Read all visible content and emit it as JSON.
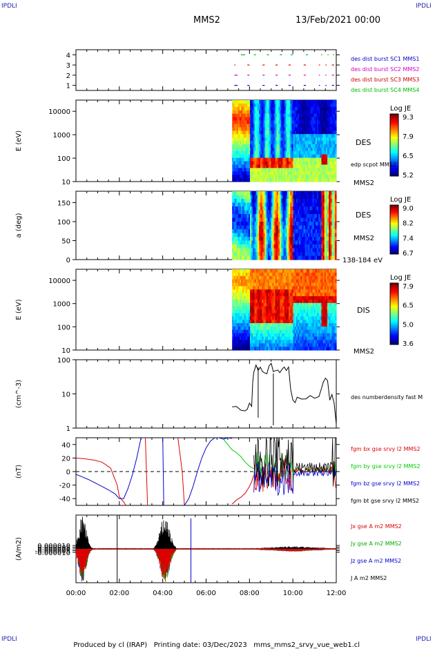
{
  "header": {
    "corner_label": "IPDLI",
    "spacecraft": "MMS2",
    "datetime": "13/Feb/2021 00:00"
  },
  "footer": {
    "produced_by": "Produced by cl (IRAP)",
    "printing_date": "Printing date: 03/Dec/2023",
    "filename": "mms_mms2_srvy_vue_web1.cl"
  },
  "time_axis": {
    "range_hours": [
      0,
      12
    ],
    "tick_labels": [
      "00:00",
      "02:00",
      "04:00",
      "06:00",
      "08:00",
      "10:00",
      "12:00"
    ]
  },
  "chart_data": [
    {
      "type": "scatter",
      "panel": "burst-availability",
      "ylim": [
        0.5,
        4.5
      ],
      "y_ticks": [
        "1",
        "2",
        "3",
        "4"
      ],
      "ylabel": "",
      "series": [
        {
          "name": "des dist burst SC1 MMS1",
          "color": "#0000cc",
          "y": 1,
          "segments_hours": [
            [
              7.3,
              7.45
            ],
            [
              7.9,
              8.0
            ],
            [
              8.6,
              8.7
            ],
            [
              9.2,
              9.3
            ],
            [
              9.8,
              9.9
            ],
            [
              10.5,
              10.6
            ],
            [
              11.2,
              11.25
            ],
            [
              11.5,
              11.55
            ],
            [
              11.8,
              11.9
            ]
          ]
        },
        {
          "name": "des dist burst SC2 MMS2",
          "color": "#cc00cc",
          "y": 2,
          "segments_hours": [
            [
              7.3,
              7.45
            ],
            [
              7.9,
              8.0
            ],
            [
              8.6,
              8.7
            ],
            [
              9.2,
              9.3
            ],
            [
              9.8,
              9.9
            ],
            [
              10.5,
              10.6
            ],
            [
              11.2,
              11.25
            ],
            [
              11.5,
              11.55
            ],
            [
              11.8,
              11.9
            ]
          ]
        },
        {
          "name": "des dist burst SC3 MMS3",
          "color": "#cc0000",
          "y": 3,
          "segments_hours": [
            [
              7.3,
              7.35
            ],
            [
              7.9,
              8.0
            ],
            [
              8.6,
              8.7
            ],
            [
              9.2,
              9.3
            ],
            [
              9.8,
              9.9
            ],
            [
              10.5,
              10.6
            ],
            [
              11.2,
              11.25
            ],
            [
              11.5,
              11.55
            ],
            [
              11.8,
              11.9
            ]
          ]
        },
        {
          "name": "des dist burst SC4 MMS4",
          "color": "#00bb00",
          "y": 4,
          "segments_hours": [
            [
              7.6,
              7.8
            ],
            [
              8.2,
              8.3
            ],
            [
              8.8,
              8.9
            ],
            [
              9.4,
              9.5
            ],
            [
              9.9,
              10.0
            ],
            [
              10.6,
              10.7
            ],
            [
              11.3,
              11.35
            ],
            [
              11.6,
              11.65
            ],
            [
              11.85,
              11.9
            ]
          ]
        }
      ]
    },
    {
      "type": "heatmap",
      "panel": "des-energy-spectrogram",
      "ylabel": "E (eV)",
      "yscale": "log",
      "ylim": [
        10,
        30000
      ],
      "y_ticks": [
        "10",
        "100",
        "1000",
        "10000"
      ],
      "data_start_hour": 7.2,
      "right_labels": [
        "DES",
        "edp scpot MMS2",
        "MMS2"
      ],
      "colorbar": {
        "title": "Log JE",
        "ticks": [
          "9.3",
          "7.9",
          "6.5",
          "5.2"
        ],
        "min": 5.2,
        "max": 9.3
      }
    },
    {
      "type": "heatmap",
      "panel": "des-pitch-angle",
      "ylabel": "a (deg)",
      "ylim": [
        0,
        180
      ],
      "y_ticks": [
        "0",
        "50",
        "100",
        "150"
      ],
      "data_start_hour": 7.2,
      "right_labels": [
        "DES",
        "MMS2",
        "138-184 eV"
      ],
      "colorbar": {
        "title": "Log JE",
        "ticks": [
          "9.0",
          "8.2",
          "7.4",
          "6.7"
        ],
        "min": 6.7,
        "max": 9.0
      }
    },
    {
      "type": "heatmap",
      "panel": "dis-energy-spectrogram",
      "ylabel": "E (eV)",
      "yscale": "log",
      "ylim": [
        10,
        30000
      ],
      "y_ticks": [
        "10",
        "100",
        "1000",
        "10000"
      ],
      "data_start_hour": 7.2,
      "right_labels": [
        "DIS",
        "MMS2"
      ],
      "colorbar": {
        "title": "Log JE",
        "ticks": [
          "7.9",
          "6.5",
          "5.0",
          "3.6"
        ],
        "min": 3.6,
        "max": 7.9
      }
    },
    {
      "type": "line",
      "panel": "des-density",
      "ylabel": "(cm^-3)",
      "yscale": "log",
      "ylim": [
        1,
        100
      ],
      "y_ticks": [
        "1",
        "10",
        "100"
      ],
      "series": [
        {
          "name": "des numberdensity fast M",
          "color": "#000000",
          "x": [
            7.2,
            7.4,
            7.6,
            7.8,
            7.9,
            8.0,
            8.1,
            8.15,
            8.2,
            8.3,
            8.4,
            8.5,
            8.6,
            8.7,
            8.8,
            8.9,
            9.0,
            9.1,
            9.2,
            9.3,
            9.4,
            9.5,
            9.6,
            9.7,
            9.8,
            9.9,
            10.0,
            10.1,
            10.2,
            10.4,
            10.6,
            10.8,
            11.0,
            11.2,
            11.3,
            11.4,
            11.5,
            11.6,
            11.7,
            11.8,
            11.9,
            12.0
          ],
          "y": [
            4.2,
            3.8,
            3.2,
            2.9,
            3.5,
            5.0,
            4.5,
            25,
            40,
            70,
            55,
            60,
            50,
            45,
            35,
            60,
            70,
            50,
            45,
            55,
            40,
            60,
            55,
            45,
            60,
            15,
            7,
            6,
            8,
            6.5,
            7,
            9,
            7,
            8,
            15,
            25,
            30,
            25,
            6,
            9,
            5,
            1.5
          ]
        }
      ]
    },
    {
      "type": "line",
      "panel": "fgm-magnetic-field",
      "ylabel": "(nT)",
      "ylim": [
        -50,
        50
      ],
      "y_ticks": [
        "-40",
        "-20",
        "0",
        "20",
        "40"
      ],
      "series": [
        {
          "name": "fgm bx gse srvy l2 MMS2",
          "color": "#dd0000",
          "x": [
            0.0,
            0.4,
            0.8,
            1.2,
            1.6,
            1.9,
            2.0,
            2.2,
            2.3
          ],
          "y": [
            20,
            19,
            17,
            14,
            5,
            -20,
            -37,
            -45,
            -50
          ]
        },
        {
          "name": "fgm bx gse srvy l2 MMS2",
          "color": "#dd0000",
          "x": [
            3.2,
            3.3
          ],
          "y": [
            50,
            -50
          ]
        },
        {
          "name": "fgm bx gse srvy l2 MMS2",
          "color": "#dd0000",
          "x": [
            4.7,
            4.9,
            5.0
          ],
          "y": [
            50,
            0,
            -50
          ]
        },
        {
          "name": "fgm bx gse srvy l2 MMS2",
          "color": "#dd0000",
          "x": [
            7.2,
            7.4,
            7.6,
            7.8,
            8.0,
            8.1,
            8.2
          ],
          "y": [
            -48,
            -42,
            -38,
            -32,
            -22,
            -15,
            -5
          ]
        },
        {
          "name": "fgm by gse srvy l2 MMS2",
          "color": "#00cc00",
          "x": [
            6.8,
            7.0,
            7.2,
            7.4,
            7.6,
            7.8,
            8.0,
            8.2
          ],
          "y": [
            48,
            40,
            32,
            28,
            22,
            14,
            8,
            4
          ]
        },
        {
          "name": "fgm bz gse srvy l2 MMS2",
          "color": "#0000cc",
          "x": [
            0.0,
            0.3,
            0.6,
            0.9,
            1.2,
            1.5,
            1.8,
            2.0,
            2.2,
            2.4,
            2.6,
            2.8,
            3.0
          ],
          "y": [
            -4,
            -8,
            -12,
            -17,
            -22,
            -27,
            -33,
            -40,
            -40,
            -25,
            -5,
            20,
            50
          ]
        },
        {
          "name": "fgm bz gse srvy l2 MMS2",
          "color": "#0000cc",
          "x": [
            4.0,
            4.05
          ],
          "y": [
            50,
            -50
          ]
        },
        {
          "name": "fgm bz gse srvy l2 MMS2",
          "color": "#0000cc",
          "x": [
            5.0,
            5.2,
            5.4,
            5.6,
            5.8,
            6.0,
            6.2,
            6.4
          ],
          "y": [
            -50,
            -40,
            -22,
            0,
            20,
            35,
            45,
            50
          ]
        },
        {
          "name": "fgm bz gse srvy l2 MMS2",
          "color": "#0000cc",
          "x": [
            6.6,
            6.8,
            7.0,
            7.2
          ],
          "y": [
            50,
            48,
            50,
            49
          ]
        }
      ],
      "reference_line_y": 0,
      "extra_legend": "fgm bt gse srvy l2 MMS2"
    },
    {
      "type": "line",
      "panel": "current-density",
      "ylabel": "(A/m2)",
      "ylim": [
        -0.0001,
        0.0001
      ],
      "y_ticks": [
        "0.000010",
        "0.000005",
        "0.000000",
        "-0.000005",
        "-0.000010"
      ],
      "series": [
        {
          "name": "Jx gse A m2 MMS2",
          "color": "#dd0000"
        },
        {
          "name": "Jy gse A m2 MMS2",
          "color": "#00aa00"
        },
        {
          "name": "Jz gse A m2 MMS2",
          "color": "#0000cc"
        },
        {
          "name": "J A m2 MMS2",
          "color": "#000000"
        }
      ]
    }
  ]
}
